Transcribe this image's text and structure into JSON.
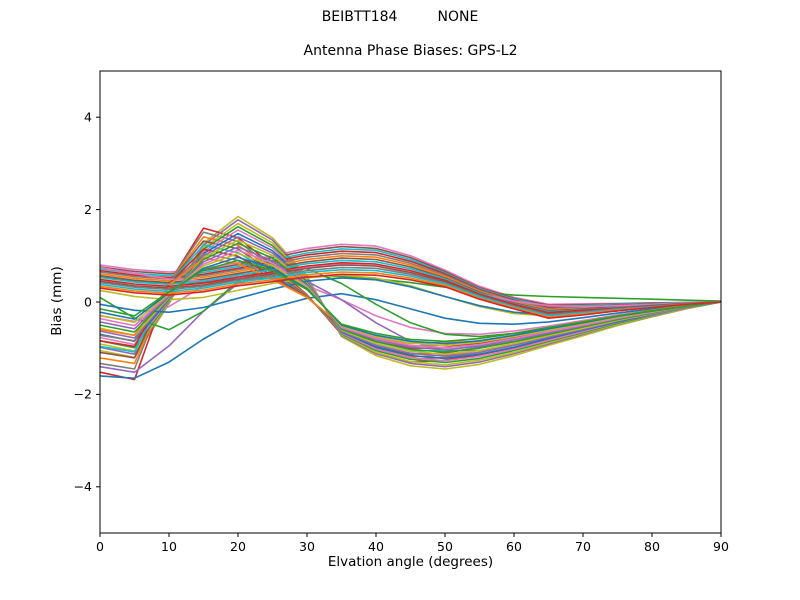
{
  "figure": {
    "suptitle": "BEIBTT184         NONE",
    "background": "#ffffff"
  },
  "chart_data": {
    "type": "line",
    "title": "Antenna Phase Biases: GPS-L2",
    "xlabel": "Elvation angle (degrees)",
    "ylabel": "Bias (mm)",
    "xlim": [
      0,
      90
    ],
    "ylim": [
      -5,
      5
    ],
    "xticks": [
      0,
      10,
      20,
      30,
      40,
      50,
      60,
      70,
      80,
      90
    ],
    "yticks": [
      -4,
      -2,
      0,
      2,
      4
    ],
    "grid": false,
    "legend": "none",
    "x": [
      0,
      5,
      10,
      15,
      20,
      25,
      30,
      35,
      40,
      45,
      50,
      55,
      60,
      65,
      70,
      75,
      80,
      85,
      90
    ],
    "series": [
      {
        "color": "#bcbd22",
        "values": [
          -1.05,
          -1.2,
          -0.04,
          1.27,
          1.85,
          1.39,
          0.56,
          -0.75,
          -1.16,
          -1.38,
          -1.45,
          -1.35,
          -1.16,
          -0.94,
          -0.73,
          -0.51,
          -0.32,
          -0.15,
          0
        ]
      },
      {
        "color": "#e377c2",
        "values": [
          0.8,
          0.7,
          0.65,
          0.72,
          0.85,
          1.0,
          1.16,
          1.25,
          1.21,
          1.0,
          0.69,
          0.34,
          0.1,
          -0.05,
          -0.04,
          -0.03,
          -0.02,
          -0.01,
          0
        ]
      },
      {
        "color": "#2ca02c",
        "values": [
          0.55,
          0.45,
          0.4,
          0.42,
          0.48,
          0.52,
          0.55,
          0.55,
          0.5,
          0.42,
          0.32,
          0.22,
          0.15,
          0.12,
          0.1,
          0.08,
          0.06,
          0.04,
          0.02
        ]
      },
      {
        "color": "#d62728",
        "values": [
          -1.52,
          -1.68,
          0.41,
          1.6,
          1.39,
          0.8,
          0.16,
          -0.7,
          -1.11,
          -1.3,
          -1.26,
          -1.14,
          -0.99,
          -0.81,
          -0.61,
          -0.43,
          -0.26,
          -0.12,
          0
        ]
      },
      {
        "color": "#9467bd",
        "values": [
          -0.98,
          -1.13,
          -0.01,
          1.23,
          1.78,
          1.34,
          0.53,
          -0.73,
          -1.12,
          -1.33,
          -1.4,
          -1.3,
          -1.12,
          -0.91,
          -0.7,
          -0.49,
          -0.31,
          -0.14,
          0
        ]
      },
      {
        "color": "#8c564b",
        "values": [
          0.76,
          0.66,
          0.61,
          0.68,
          0.81,
          0.96,
          1.11,
          1.2,
          1.16,
          0.96,
          0.66,
          0.31,
          0.08,
          -0.07,
          -0.06,
          -0.04,
          -0.02,
          -0.01,
          0
        ]
      },
      {
        "color": "#e377c2",
        "values": [
          -0.3,
          -0.42,
          -0.1,
          0.35,
          0.6,
          0.55,
          0.35,
          0.05,
          -0.3,
          -0.55,
          -0.68,
          -0.7,
          -0.63,
          -0.52,
          -0.4,
          -0.28,
          -0.18,
          -0.08,
          0
        ]
      },
      {
        "color": "#7f7f7f",
        "values": [
          -1.33,
          -1.45,
          0.43,
          1.51,
          1.31,
          0.76,
          0.15,
          -0.67,
          -1.05,
          -1.24,
          -1.2,
          -1.09,
          -0.94,
          -0.77,
          -0.58,
          -0.41,
          -0.25,
          -0.11,
          0
        ]
      },
      {
        "color": "#bcbd22",
        "values": [
          -0.91,
          -1.06,
          0.0,
          1.18,
          1.7,
          1.28,
          0.51,
          -0.71,
          -1.09,
          -1.29,
          -1.36,
          -1.26,
          -1.09,
          -0.88,
          -0.68,
          -0.48,
          -0.3,
          -0.14,
          0
        ]
      },
      {
        "color": "#17becf",
        "values": [
          0.72,
          0.62,
          0.57,
          0.64,
          0.77,
          0.91,
          1.06,
          1.15,
          1.12,
          0.92,
          0.63,
          0.29,
          0.06,
          -0.1,
          -0.08,
          -0.05,
          -0.03,
          -0.01,
          0
        ]
      },
      {
        "color": "#1f77b4",
        "values": [
          -1.6,
          -1.65,
          -1.3,
          -0.8,
          -0.38,
          -0.12,
          0.08,
          0.18,
          0.05,
          -0.15,
          -0.35,
          -0.46,
          -0.48,
          -0.43,
          -0.34,
          -0.24,
          -0.15,
          -0.07,
          0
        ]
      },
      {
        "color": "#ff7f0e",
        "values": [
          -1.21,
          -1.33,
          0.41,
          1.41,
          1.23,
          0.71,
          0.14,
          -0.64,
          -1.01,
          -1.19,
          -1.15,
          -1.05,
          -0.9,
          -0.74,
          -0.56,
          -0.39,
          -0.24,
          -0.11,
          0
        ]
      },
      {
        "color": "#2ca02c",
        "values": [
          -0.84,
          -0.99,
          0.02,
          1.14,
          1.63,
          1.22,
          0.49,
          -0.69,
          -1.05,
          -1.24,
          -1.31,
          -1.22,
          -1.05,
          -0.85,
          -0.66,
          -0.46,
          -0.29,
          -0.13,
          0
        ]
      },
      {
        "color": "#d62728",
        "values": [
          0.68,
          0.58,
          0.53,
          0.6,
          0.73,
          0.87,
          1.02,
          1.1,
          1.07,
          0.88,
          0.61,
          0.27,
          0.04,
          -0.12,
          -0.1,
          -0.07,
          -0.04,
          -0.02,
          0
        ]
      },
      {
        "color": "#9467bd",
        "values": [
          -1.4,
          -1.52,
          -0.95,
          -0.2,
          0.4,
          0.6,
          0.45,
          0.05,
          -0.45,
          -0.85,
          -1.05,
          -1.05,
          -0.93,
          -0.77,
          -0.6,
          -0.42,
          -0.27,
          -0.12,
          0
        ]
      },
      {
        "color": "#8c564b",
        "values": [
          -1.09,
          -1.21,
          0.4,
          1.32,
          1.15,
          0.66,
          0.13,
          -0.61,
          -0.96,
          -1.13,
          -1.1,
          -0.99,
          -0.86,
          -0.7,
          -0.53,
          -0.37,
          -0.23,
          -0.1,
          0
        ]
      },
      {
        "color": "#e377c2",
        "values": [
          -0.77,
          -0.92,
          0.04,
          1.09,
          1.56,
          1.17,
          0.47,
          -0.67,
          -1.02,
          -1.21,
          -1.27,
          -1.18,
          -1.02,
          -0.83,
          -0.64,
          -0.44,
          -0.28,
          -0.13,
          0
        ]
      },
      {
        "color": "#7f7f7f",
        "values": [
          0.65,
          0.55,
          0.5,
          0.57,
          0.7,
          0.83,
          0.97,
          1.05,
          1.02,
          0.84,
          0.58,
          0.25,
          0.02,
          -0.14,
          -0.11,
          -0.08,
          -0.05,
          -0.02,
          0
        ]
      },
      {
        "color": "#bcbd22",
        "values": [
          0.25,
          0.12,
          0.05,
          0.1,
          0.25,
          0.4,
          0.52,
          0.58,
          0.52,
          0.35,
          0.12,
          -0.1,
          -0.25,
          -0.3,
          -0.26,
          -0.19,
          -0.12,
          -0.06,
          0
        ]
      },
      {
        "color": "#17becf",
        "values": [
          -0.96,
          -1.08,
          0.4,
          1.23,
          1.07,
          0.62,
          0.12,
          -0.59,
          -0.91,
          -1.07,
          -1.04,
          -0.94,
          -0.81,
          -0.66,
          -0.5,
          -0.35,
          -0.21,
          -0.1,
          0
        ]
      },
      {
        "color": "#1f77b4",
        "values": [
          -0.7,
          -0.85,
          0.06,
          1.05,
          1.48,
          1.11,
          0.44,
          -0.65,
          -0.98,
          -1.16,
          -1.22,
          -1.13,
          -0.98,
          -0.79,
          -0.61,
          -0.43,
          -0.27,
          -0.12,
          0
        ]
      },
      {
        "color": "#ff7f0e",
        "values": [
          0.61,
          0.51,
          0.46,
          0.53,
          0.66,
          0.79,
          0.92,
          1.0,
          0.97,
          0.8,
          0.55,
          0.23,
          0.0,
          -0.17,
          -0.14,
          -0.09,
          -0.06,
          -0.03,
          0
        ]
      },
      {
        "color": "#2ca02c",
        "values": [
          0.1,
          -0.35,
          -0.6,
          -0.2,
          0.45,
          0.8,
          0.72,
          0.4,
          -0.05,
          -0.45,
          -0.7,
          -0.75,
          -0.68,
          -0.57,
          -0.44,
          -0.31,
          -0.19,
          -0.09,
          0
        ]
      },
      {
        "color": "#d62728",
        "values": [
          -0.84,
          -0.96,
          0.39,
          1.14,
          0.99,
          0.57,
          0.11,
          -0.56,
          -0.86,
          -1.01,
          -0.98,
          -0.89,
          -0.77,
          -0.63,
          -0.47,
          -0.33,
          -0.2,
          -0.09,
          0
        ]
      },
      {
        "color": "#9467bd",
        "values": [
          -0.63,
          -0.78,
          0.08,
          1.0,
          1.41,
          1.06,
          0.42,
          -0.63,
          -0.94,
          -1.11,
          -1.17,
          -1.09,
          -0.94,
          -0.76,
          -0.59,
          -0.41,
          -0.26,
          -0.12,
          0
        ]
      },
      {
        "color": "#8c564b",
        "values": [
          0.57,
          0.47,
          0.42,
          0.49,
          0.62,
          0.74,
          0.87,
          0.95,
          0.92,
          0.76,
          0.52,
          0.21,
          -0.02,
          -0.19,
          -0.15,
          -0.1,
          -0.07,
          -0.03,
          0
        ]
      },
      {
        "color": "#e377c2",
        "values": [
          0.75,
          0.62,
          0.5,
          0.45,
          0.5,
          0.62,
          0.75,
          0.82,
          0.78,
          0.62,
          0.4,
          0.18,
          0.02,
          -0.08,
          -0.1,
          -0.08,
          -0.05,
          -0.02,
          0
        ]
      },
      {
        "color": "#7f7f7f",
        "values": [
          -0.72,
          -0.84,
          0.37,
          1.04,
          0.9,
          0.52,
          0.1,
          -0.53,
          -0.82,
          -0.96,
          -0.93,
          -0.84,
          -0.73,
          -0.6,
          -0.45,
          -0.32,
          -0.19,
          -0.09,
          0
        ]
      },
      {
        "color": "#bcbd22",
        "values": [
          -0.57,
          -0.72,
          0.1,
          0.96,
          1.34,
          1.01,
          0.4,
          -0.61,
          -0.9,
          -1.07,
          -1.13,
          -1.05,
          -0.9,
          -0.73,
          -0.57,
          -0.4,
          -0.25,
          -0.11,
          0
        ]
      },
      {
        "color": "#17becf",
        "values": [
          0.53,
          0.43,
          0.38,
          0.45,
          0.58,
          0.7,
          0.83,
          0.9,
          0.87,
          0.72,
          0.5,
          0.19,
          -0.04,
          -0.21,
          -0.17,
          -0.12,
          -0.07,
          -0.03,
          0
        ]
      },
      {
        "color": "#1f77b4",
        "values": [
          -0.05,
          -0.18,
          -0.22,
          -0.12,
          0.08,
          0.28,
          0.45,
          0.52,
          0.48,
          0.33,
          0.12,
          -0.08,
          -0.22,
          -0.28,
          -0.25,
          -0.19,
          -0.12,
          -0.06,
          0
        ]
      },
      {
        "color": "#ff7f0e",
        "values": [
          -0.6,
          -0.72,
          0.36,
          0.95,
          0.83,
          0.48,
          0.1,
          -0.5,
          -0.77,
          -0.9,
          -0.87,
          -0.79,
          -0.68,
          -0.56,
          -0.42,
          -0.3,
          -0.18,
          -0.08,
          0
        ]
      },
      {
        "color": "#2ca02c",
        "values": [
          -0.5,
          -0.65,
          0.12,
          0.92,
          1.27,
          0.95,
          0.38,
          -0.59,
          -0.86,
          -1.03,
          -1.08,
          -1.0,
          -0.86,
          -0.7,
          -0.54,
          -0.38,
          -0.24,
          -0.11,
          0
        ]
      },
      {
        "color": "#d62728",
        "values": [
          0.49,
          0.39,
          0.34,
          0.41,
          0.54,
          0.65,
          0.78,
          0.85,
          0.82,
          0.68,
          0.47,
          0.17,
          -0.05,
          -0.23,
          -0.18,
          -0.13,
          -0.08,
          -0.03,
          0
        ]
      },
      {
        "color": "#9467bd",
        "values": [
          -0.43,
          -0.58,
          0.14,
          0.87,
          1.19,
          0.89,
          0.36,
          -0.56,
          -0.82,
          -0.98,
          -1.03,
          -0.96,
          -0.82,
          -0.67,
          -0.52,
          -0.36,
          -0.23,
          -0.1,
          0
        ]
      },
      {
        "color": "#8c564b",
        "values": [
          0.45,
          0.35,
          0.3,
          0.37,
          0.5,
          0.61,
          0.73,
          0.8,
          0.78,
          0.64,
          0.44,
          0.15,
          -0.08,
          -0.26,
          -0.21,
          -0.14,
          -0.09,
          -0.04,
          0
        ]
      },
      {
        "color": "#e377c2",
        "values": [
          -0.36,
          -0.51,
          0.16,
          0.82,
          1.12,
          0.84,
          0.34,
          -0.55,
          -0.79,
          -0.94,
          -0.99,
          -0.92,
          -0.79,
          -0.64,
          -0.5,
          -0.35,
          -0.22,
          -0.1,
          0
        ]
      },
      {
        "color": "#7f7f7f",
        "values": [
          0.42,
          0.32,
          0.27,
          0.34,
          0.47,
          0.57,
          0.68,
          0.75,
          0.73,
          0.6,
          0.41,
          0.13,
          -0.09,
          -0.28,
          -0.22,
          -0.15,
          -0.1,
          -0.04,
          0
        ]
      },
      {
        "color": "#bcbd22",
        "values": [
          -0.29,
          -0.44,
          0.18,
          0.78,
          1.05,
          0.79,
          0.32,
          -0.52,
          -0.75,
          -0.89,
          -0.94,
          -0.87,
          -0.75,
          -0.61,
          -0.47,
          -0.33,
          -0.21,
          -0.09,
          0
        ]
      },
      {
        "color": "#17becf",
        "values": [
          0.38,
          0.28,
          0.23,
          0.3,
          0.43,
          0.52,
          0.64,
          0.7,
          0.68,
          0.56,
          0.39,
          0.11,
          -0.11,
          -0.3,
          -0.24,
          -0.17,
          -0.11,
          -0.05,
          0
        ]
      },
      {
        "color": "#1f77b4",
        "values": [
          -0.22,
          -0.37,
          0.2,
          0.73,
          0.97,
          0.73,
          0.29,
          -0.5,
          -0.72,
          -0.85,
          -0.9,
          -0.84,
          -0.72,
          -0.58,
          -0.45,
          -0.31,
          -0.2,
          -0.09,
          0
        ]
      },
      {
        "color": "#ff7f0e",
        "values": [
          0.34,
          0.24,
          0.19,
          0.26,
          0.39,
          0.48,
          0.59,
          0.65,
          0.63,
          0.52,
          0.36,
          0.08,
          -0.13,
          -0.33,
          -0.26,
          -0.18,
          -0.12,
          -0.05,
          0
        ]
      },
      {
        "color": "#2ca02c",
        "values": [
          -0.15,
          -0.3,
          0.22,
          0.69,
          0.9,
          0.68,
          0.27,
          -0.48,
          -0.68,
          -0.81,
          -0.85,
          -0.79,
          -0.68,
          -0.55,
          -0.43,
          -0.3,
          -0.19,
          -0.09,
          0
        ]
      },
      {
        "color": "#d62728",
        "values": [
          0.3,
          0.2,
          0.15,
          0.22,
          0.35,
          0.44,
          0.54,
          0.6,
          0.58,
          0.48,
          0.33,
          0.06,
          -0.15,
          -0.35,
          -0.28,
          -0.19,
          -0.12,
          -0.05,
          0
        ]
      }
    ]
  }
}
